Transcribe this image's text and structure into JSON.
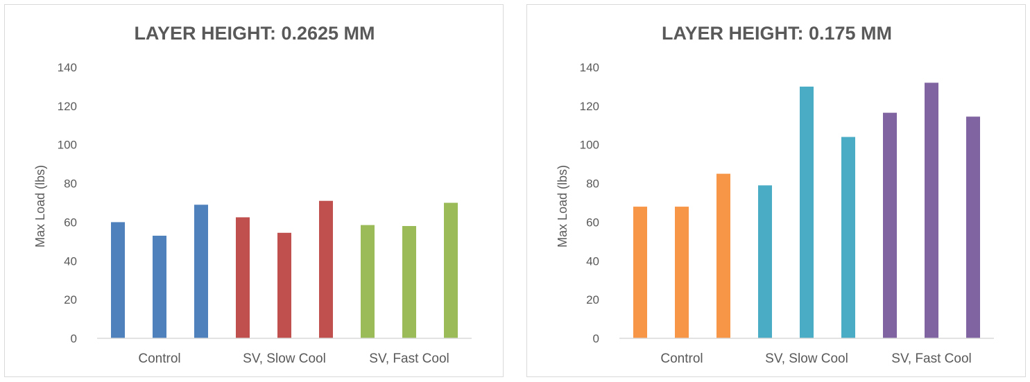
{
  "chart_data": [
    {
      "type": "bar",
      "title": "LAYER HEIGHT: 0.2625 MM",
      "xlabel": "",
      "ylabel": "Max Load (lbs)",
      "ylim": [
        0,
        140
      ],
      "yticks": [
        0,
        20,
        40,
        60,
        80,
        100,
        120,
        140
      ],
      "grid": false,
      "categories": [
        "Control",
        "SV, Slow Cool",
        "SV, Fast Cool"
      ],
      "groups": [
        {
          "category": "Control",
          "color": "#4f81bd",
          "values": [
            60,
            53,
            69
          ]
        },
        {
          "category": "SV, Slow Cool",
          "color": "#c0504d",
          "values": [
            62.5,
            54.5,
            71
          ]
        },
        {
          "category": "SV, Fast Cool",
          "color": "#9bbb59",
          "values": [
            58.5,
            58,
            70
          ]
        }
      ]
    },
    {
      "type": "bar",
      "title": "LAYER HEIGHT: 0.175 MM",
      "xlabel": "",
      "ylabel": "Max Load (lbs)",
      "ylim": [
        0,
        140
      ],
      "yticks": [
        0,
        20,
        40,
        60,
        80,
        100,
        120,
        140
      ],
      "grid": false,
      "categories": [
        "Control",
        "SV, Slow Cool",
        "SV, Fast Cool"
      ],
      "groups": [
        {
          "category": "Control",
          "color": "#f79646",
          "values": [
            68,
            68,
            85
          ]
        },
        {
          "category": "SV, Slow Cool",
          "color": "#4bacc6",
          "values": [
            79,
            130,
            104
          ]
        },
        {
          "category": "SV, Fast Cool",
          "color": "#8064a2",
          "values": [
            116.5,
            132,
            114.5
          ]
        }
      ]
    }
  ]
}
